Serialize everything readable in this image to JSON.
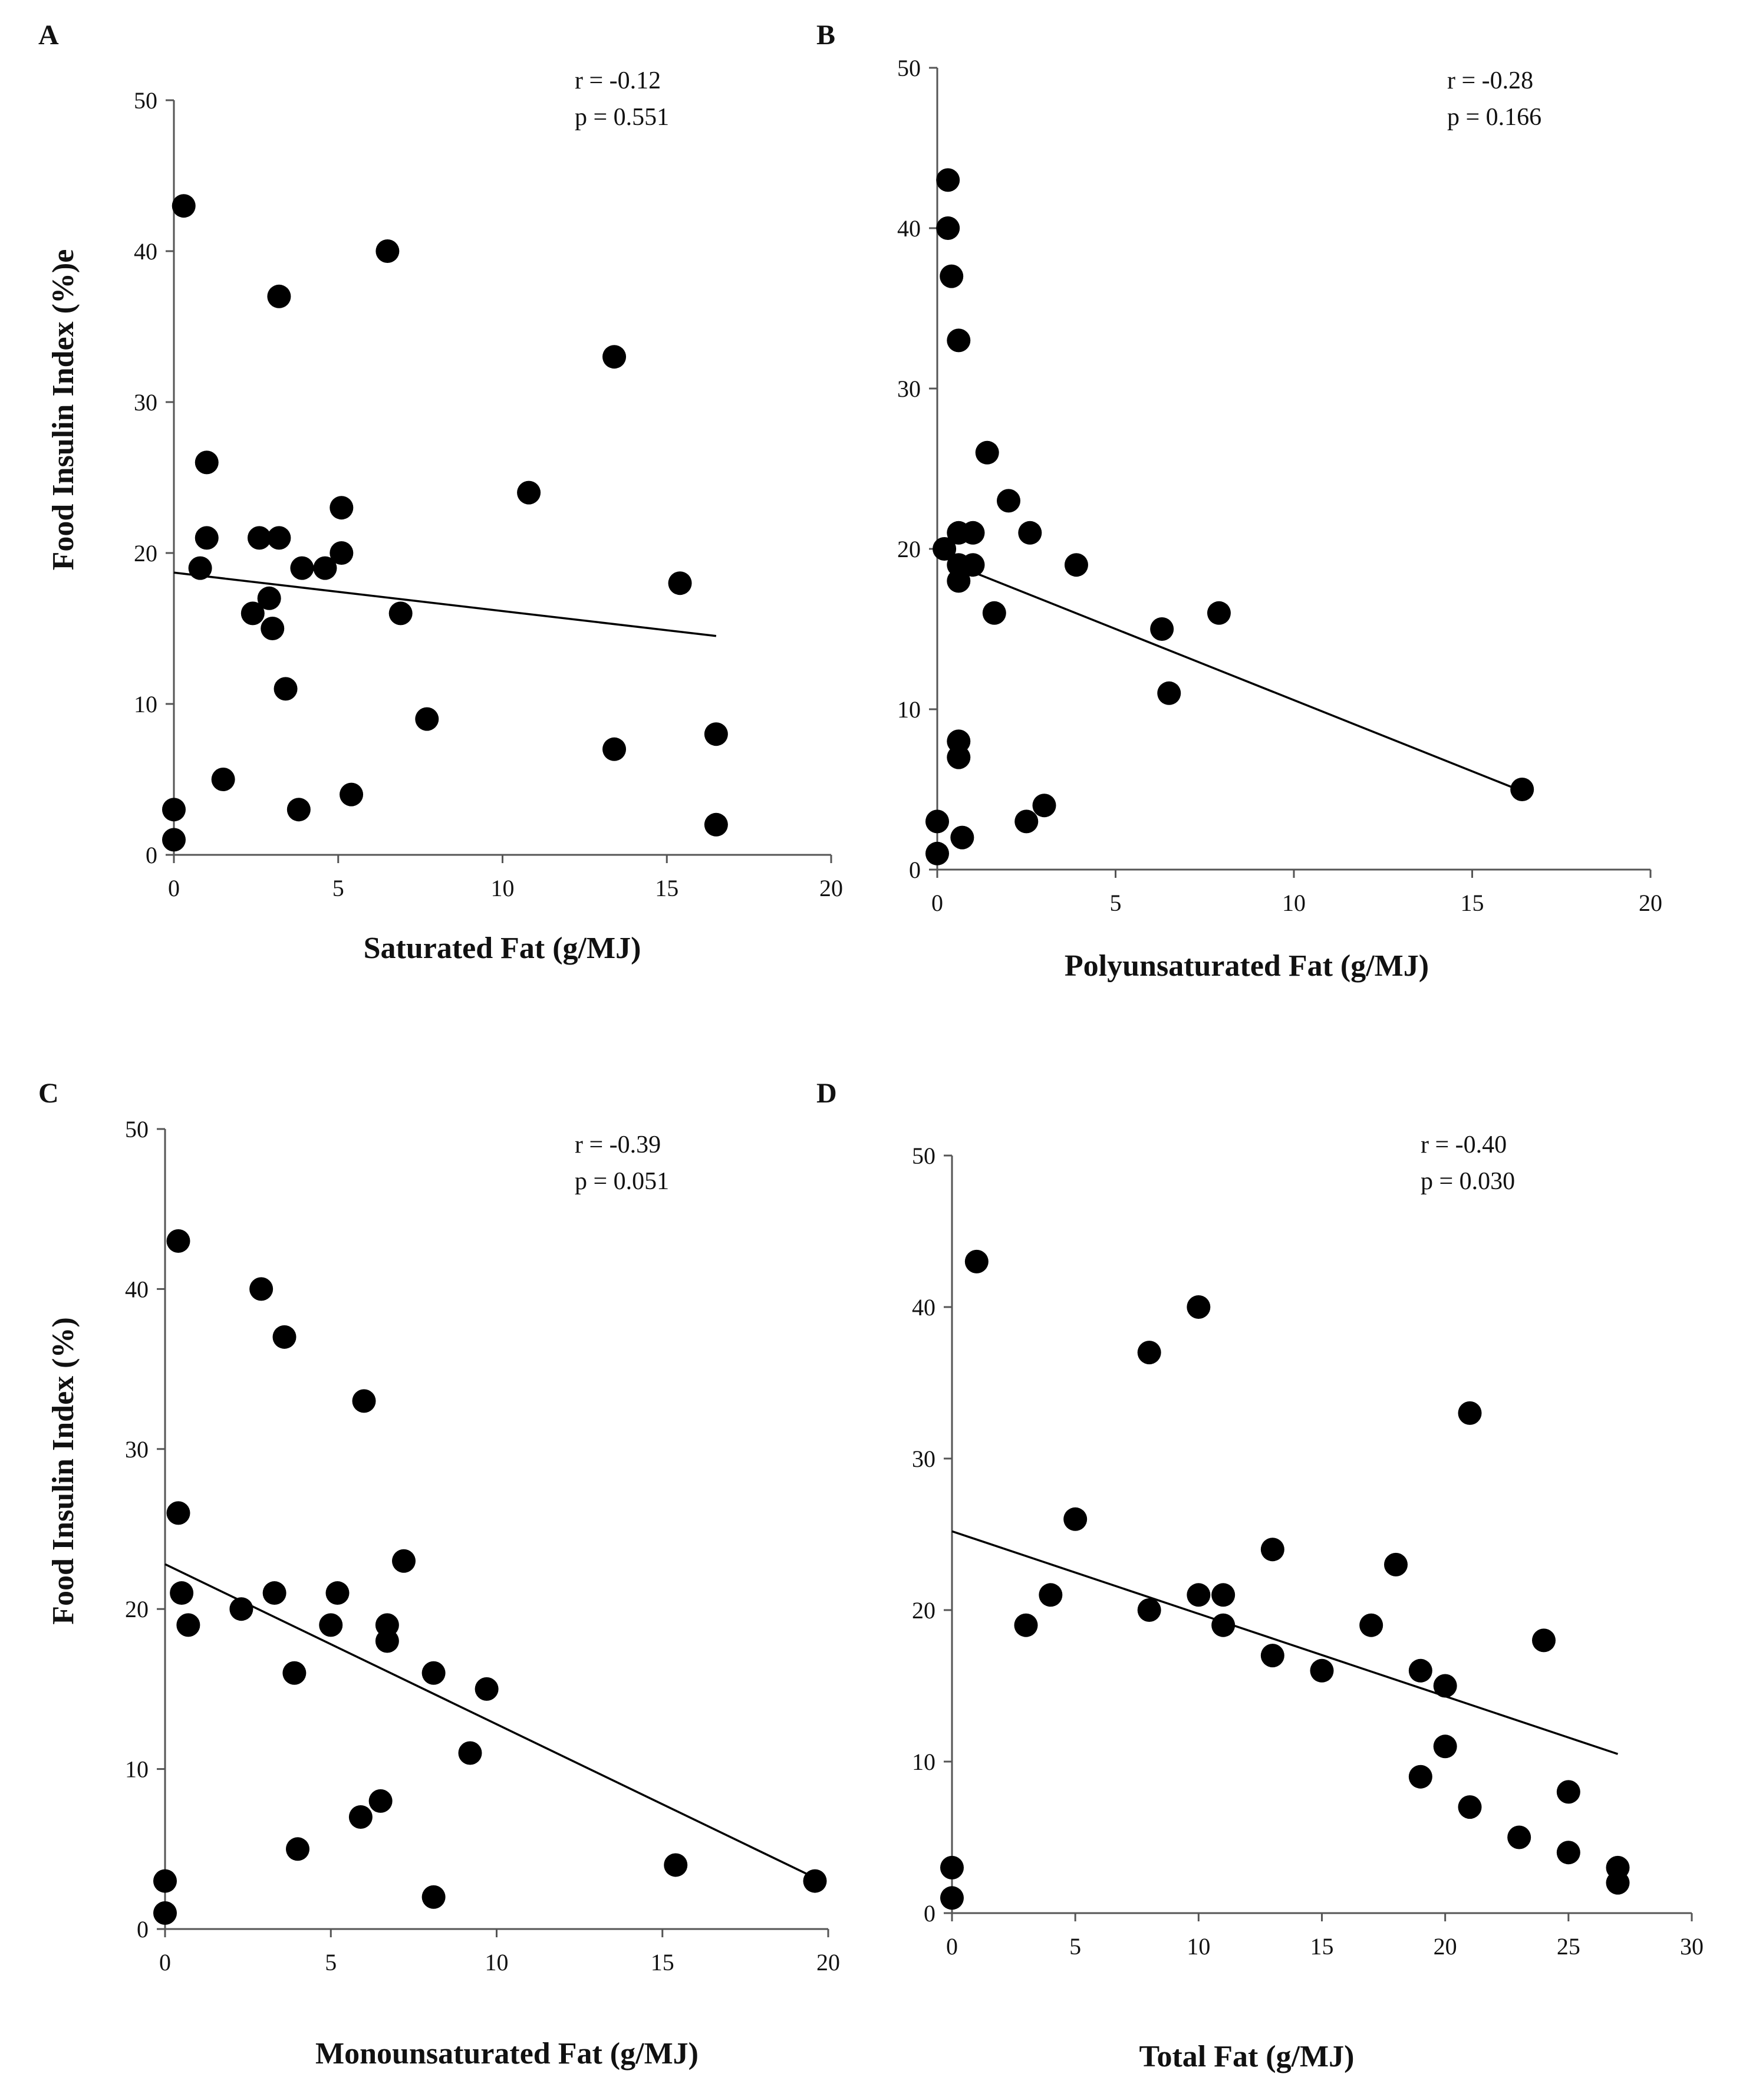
{
  "chart_data": [
    {
      "type": "scatter",
      "panel": "A",
      "xlabel": "Saturated Fat (g/MJ)",
      "ylabel": "Food Insulin Index (%)e",
      "xlim": [
        0,
        20
      ],
      "ylim": [
        0,
        50
      ],
      "xticks": [
        0,
        5,
        10,
        15,
        20
      ],
      "yticks": [
        0,
        10,
        20,
        30,
        40,
        50
      ],
      "annotations": [
        "r = -0.12",
        "p = 0.551"
      ],
      "trendline": {
        "x": [
          0,
          16.5
        ],
        "y": [
          18.7,
          14.5
        ]
      },
      "points": [
        [
          0.3,
          43
        ],
        [
          6.5,
          40
        ],
        [
          3.2,
          37
        ],
        [
          13.4,
          33
        ],
        [
          1.0,
          26
        ],
        [
          10.8,
          24
        ],
        [
          5.1,
          23
        ],
        [
          1.0,
          21
        ],
        [
          2.6,
          21
        ],
        [
          3.2,
          21
        ],
        [
          5.1,
          20
        ],
        [
          0.8,
          19
        ],
        [
          3.9,
          19
        ],
        [
          4.6,
          19
        ],
        [
          15.4,
          18
        ],
        [
          2.9,
          17
        ],
        [
          2.4,
          16
        ],
        [
          6.9,
          16
        ],
        [
          3.0,
          15
        ],
        [
          3.4,
          11
        ],
        [
          7.7,
          9
        ],
        [
          16.5,
          8
        ],
        [
          13.4,
          7
        ],
        [
          1.5,
          5
        ],
        [
          5.4,
          4
        ],
        [
          0.0,
          3
        ],
        [
          3.8,
          3
        ],
        [
          16.5,
          2
        ],
        [
          0.0,
          1
        ]
      ]
    },
    {
      "type": "scatter",
      "panel": "B",
      "xlabel": "Polyunsaturated Fat (g/MJ)",
      "ylabel": "",
      "xlim": [
        0,
        20
      ],
      "ylim": [
        0,
        50
      ],
      "xticks": [
        0,
        5,
        10,
        15,
        20
      ],
      "yticks": [
        0,
        10,
        20,
        30,
        40,
        50
      ],
      "annotations": [
        "r = -0.28",
        "p = 0.166"
      ],
      "trendline": {
        "x": [
          0.5,
          16.5
        ],
        "y": [
          19.0,
          4.8
        ]
      },
      "points": [
        [
          0.3,
          43
        ],
        [
          0.3,
          40
        ],
        [
          0.4,
          37
        ],
        [
          0.6,
          33
        ],
        [
          1.4,
          26
        ],
        [
          2.0,
          23
        ],
        [
          0.6,
          21
        ],
        [
          1.0,
          21
        ],
        [
          2.6,
          21
        ],
        [
          0.2,
          20
        ],
        [
          0.6,
          19
        ],
        [
          1.0,
          19
        ],
        [
          3.9,
          19
        ],
        [
          0.6,
          18
        ],
        [
          1.6,
          16
        ],
        [
          7.9,
          16
        ],
        [
          6.3,
          15
        ],
        [
          6.5,
          11
        ],
        [
          0.6,
          8
        ],
        [
          0.6,
          7
        ],
        [
          16.4,
          5
        ],
        [
          3.0,
          4
        ],
        [
          0.0,
          3
        ],
        [
          2.5,
          3
        ],
        [
          0.7,
          2
        ],
        [
          0.0,
          1
        ]
      ]
    },
    {
      "type": "scatter",
      "panel": "C",
      "xlabel": "Monounsaturated Fat (g/MJ)",
      "ylabel": "Food Insulin Index (%)",
      "xlim": [
        0,
        20
      ],
      "ylim": [
        0,
        50
      ],
      "xticks": [
        0,
        5,
        10,
        15,
        20
      ],
      "yticks": [
        0,
        10,
        20,
        30,
        40,
        50
      ],
      "annotations": [
        "r = -0.39",
        "p = 0.051"
      ],
      "trendline": {
        "x": [
          0,
          19.5
        ],
        "y": [
          22.8,
          3.3
        ]
      },
      "points": [
        [
          0.4,
          43
        ],
        [
          2.9,
          40
        ],
        [
          3.6,
          37
        ],
        [
          6.0,
          33
        ],
        [
          0.4,
          26
        ],
        [
          7.2,
          23
        ],
        [
          0.5,
          21
        ],
        [
          3.3,
          21
        ],
        [
          5.2,
          21
        ],
        [
          2.3,
          20
        ],
        [
          0.7,
          19
        ],
        [
          5.0,
          19
        ],
        [
          6.7,
          19
        ],
        [
          6.7,
          18
        ],
        [
          3.9,
          16
        ],
        [
          8.1,
          16
        ],
        [
          9.7,
          15
        ],
        [
          9.2,
          11
        ],
        [
          6.5,
          8
        ],
        [
          5.9,
          7
        ],
        [
          4.0,
          5
        ],
        [
          15.4,
          4
        ],
        [
          0.0,
          3
        ],
        [
          19.6,
          3
        ],
        [
          8.1,
          2
        ],
        [
          0.0,
          1
        ]
      ]
    },
    {
      "type": "scatter",
      "panel": "D",
      "xlabel": "Total Fat (g/MJ)",
      "ylabel": "",
      "xlim": [
        0,
        30
      ],
      "ylim": [
        0,
        50
      ],
      "xticks": [
        0,
        5,
        10,
        15,
        20,
        25,
        30
      ],
      "yticks": [
        0,
        10,
        20,
        30,
        40,
        50
      ],
      "annotations": [
        "r = -0.40",
        "p = 0.030"
      ],
      "trendline": {
        "x": [
          0,
          27
        ],
        "y": [
          25.2,
          10.5
        ]
      },
      "points": [
        [
          1.0,
          43
        ],
        [
          10.0,
          40
        ],
        [
          8.0,
          37
        ],
        [
          21.0,
          33
        ],
        [
          5.0,
          26
        ],
        [
          13.0,
          24
        ],
        [
          18.0,
          23
        ],
        [
          4.0,
          21
        ],
        [
          10.0,
          21
        ],
        [
          11.0,
          21
        ],
        [
          8.0,
          20
        ],
        [
          3.0,
          19
        ],
        [
          11.0,
          19
        ],
        [
          17.0,
          19
        ],
        [
          24.0,
          18
        ],
        [
          13.0,
          17
        ],
        [
          15.0,
          16
        ],
        [
          19.0,
          16
        ],
        [
          20.0,
          15
        ],
        [
          20.0,
          11
        ],
        [
          19.0,
          9
        ],
        [
          25.0,
          8
        ],
        [
          21.0,
          7
        ],
        [
          23.0,
          5
        ],
        [
          25.0,
          4
        ],
        [
          0.0,
          3
        ],
        [
          27.0,
          3
        ],
        [
          27.0,
          2
        ],
        [
          0.0,
          1
        ]
      ]
    }
  ]
}
